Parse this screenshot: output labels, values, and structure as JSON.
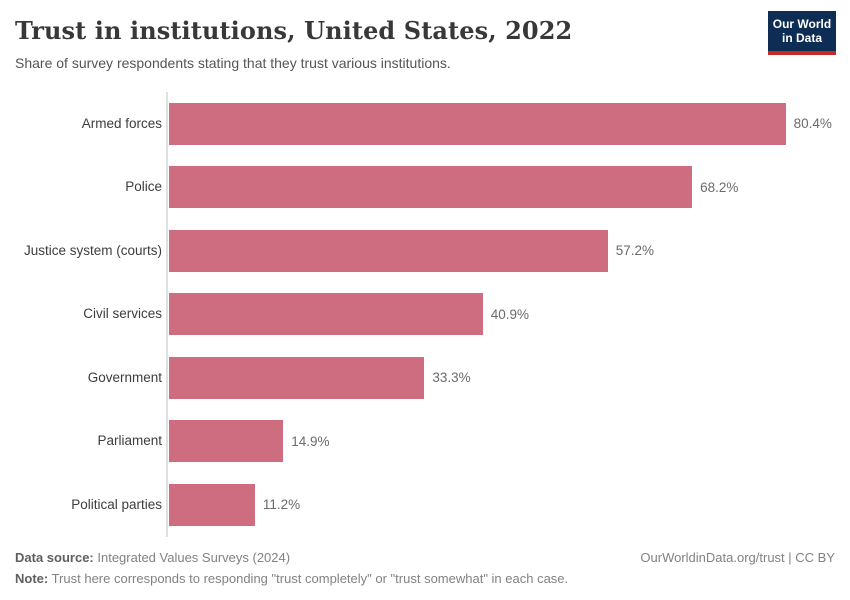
{
  "header": {
    "title": "Trust in institutions, United States, 2022",
    "subtitle": "Share of survey respondents stating that they trust various institutions.",
    "logo": {
      "line1": "Our World",
      "line2": "in Data"
    }
  },
  "chart_data": {
    "type": "bar",
    "orientation": "horizontal",
    "title": "Trust in institutions, United States, 2022",
    "xlabel": "",
    "ylabel": "",
    "unit": "%",
    "xlim": [
      0,
      85
    ],
    "grid": false,
    "legend": false,
    "categories": [
      "Armed forces",
      "Police",
      "Justice system (courts)",
      "Civil services",
      "Government",
      "Parliament",
      "Political parties"
    ],
    "values": [
      80.4,
      68.2,
      57.2,
      40.9,
      33.3,
      14.9,
      11.2
    ],
    "value_labels": [
      "80.4%",
      "68.2%",
      "57.2%",
      "40.9%",
      "33.3%",
      "14.9%",
      "11.2%"
    ]
  },
  "colors": {
    "bar": "#ce6d7f",
    "axis": "#e0e0e0",
    "logo_bg": "#0e2d54",
    "logo_accent": "#c52d22"
  },
  "footer": {
    "datasource_label": "Data source:",
    "datasource_value": " Integrated Values Surveys (2024)",
    "note_label": "Note:",
    "note_value": " Trust here corresponds to responding \"trust completely\" or \"trust somewhat\" in each case.",
    "link": "OurWorldinData.org/trust | CC BY"
  }
}
